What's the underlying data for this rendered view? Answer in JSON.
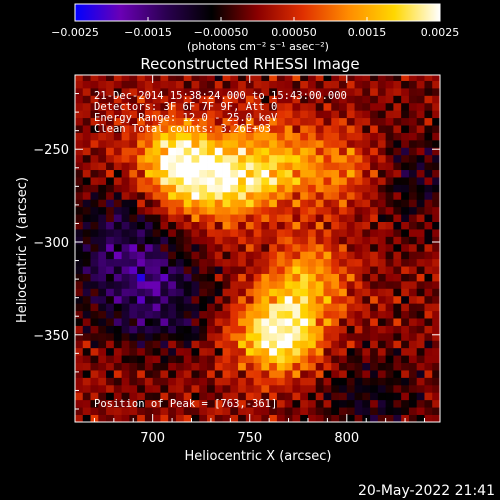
{
  "chart_data": {
    "type": "heatmap",
    "title": "Reconstructed RHESSI Image",
    "xlabel": "Heliocentric X (arcsec)",
    "ylabel": "Heliocentric Y (arcsec)",
    "xlim": [
      660,
      848
    ],
    "ylim": [
      -397,
      -210
    ],
    "x_ticks": [
      {
        "value": 700,
        "label": "700"
      },
      {
        "value": 750,
        "label": "750"
      },
      {
        "value": 800,
        "label": "800"
      }
    ],
    "y_ticks": [
      {
        "value": -250,
        "label": "−250"
      },
      {
        "value": -300,
        "label": "−300"
      },
      {
        "value": -350,
        "label": "−350"
      }
    ],
    "colorbar": {
      "min": -0.0025,
      "max": 0.0025,
      "tick_labels": [
        "−0.0025",
        "−0.0015",
        "−0.00050",
        "0.00050",
        "0.0015",
        "0.0025"
      ],
      "tick_values": [
        -0.0025,
        -0.0015,
        -0.0005,
        0.0005,
        0.0015,
        0.0025
      ],
      "unit_label": "(photons cm⁻² s⁻¹ asec⁻²)",
      "colors": [
        "#0000ff",
        "#6a00b5",
        "#2a0050",
        "#000000",
        "#8a0000",
        "#e03000",
        "#ff8c00",
        "#ffd700",
        "#ffffff"
      ]
    },
    "annotations": {
      "line1": "21-Dec-2014 15:38:24.000 to 15:43:00.000",
      "line2": "Detectors: 3F 6F 7F 9F, Att 0",
      "line3": "Energy Range: 12.0 - 25.0 keV",
      "line4": "Clean     Total counts: 3.26E+03",
      "peak": "Position of Peak = [763,-361]"
    },
    "peak_position": [
      763,
      -361
    ],
    "source_peaks": [
      {
        "x": 712,
        "y": -256,
        "intensity": 0.0021
      },
      {
        "x": 735,
        "y": -268,
        "intensity": 0.0018
      },
      {
        "x": 762,
        "y": -258,
        "intensity": 0.0015
      },
      {
        "x": 765,
        "y": -350,
        "intensity": 0.0025
      },
      {
        "x": 780,
        "y": -320,
        "intensity": 0.0014
      },
      {
        "x": 800,
        "y": -262,
        "intensity": 0.0012
      }
    ],
    "negative_regions": [
      {
        "x": 700,
        "y": -330,
        "intensity": -0.0013
      },
      {
        "x": 680,
        "y": -300,
        "intensity": -0.001
      },
      {
        "x": 830,
        "y": -265,
        "intensity": -0.0008
      },
      {
        "x": 810,
        "y": -385,
        "intensity": -0.0007
      }
    ]
  },
  "footer": {
    "datetime": "20-May-2022 21:41"
  }
}
